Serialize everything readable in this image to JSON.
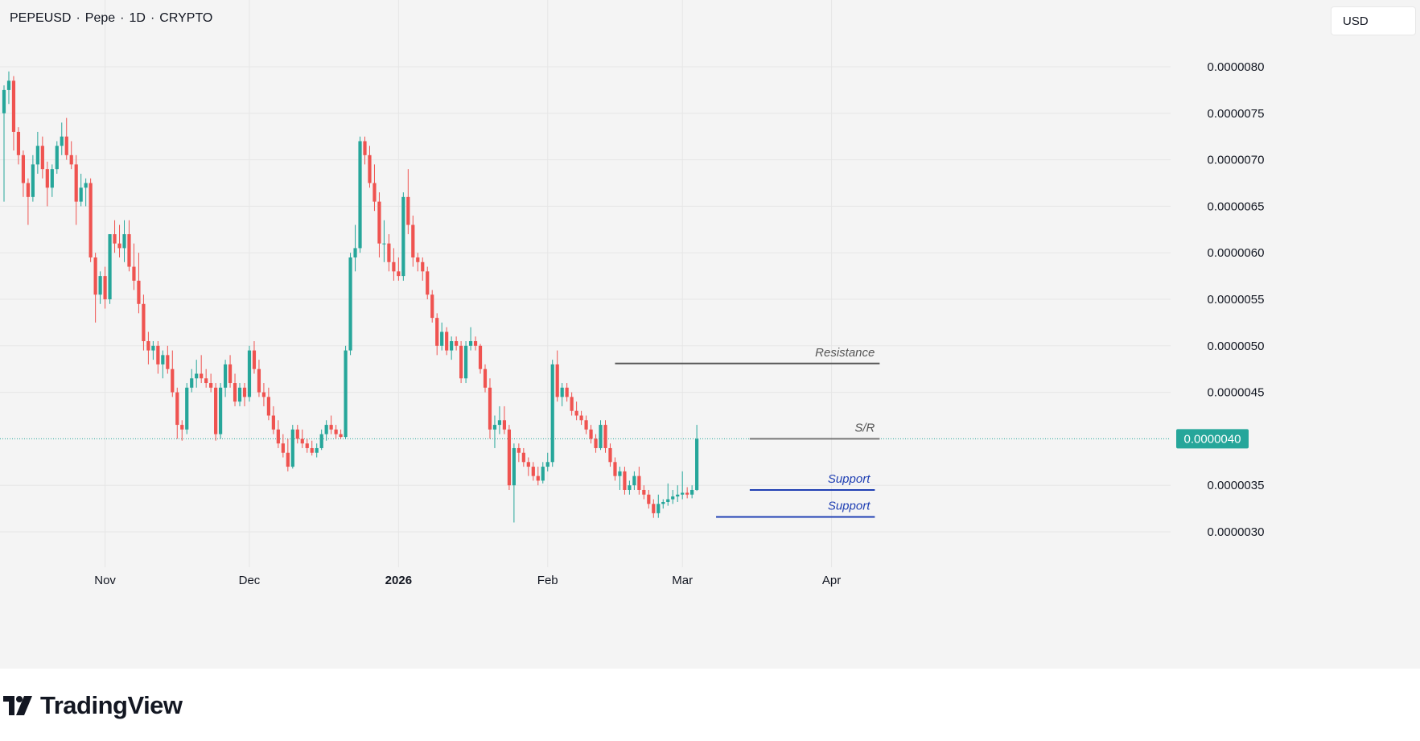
{
  "header": {
    "symbol": "PEPEUSD",
    "name": "Pepe",
    "interval": "1D",
    "exchange": "CRYPTO",
    "separator": "·"
  },
  "currency_label": "USD",
  "brand": {
    "name": "TradingView"
  },
  "colors": {
    "up": "#26a69a",
    "down": "#ef5350",
    "background": "#f4f4f4",
    "grid": "#e6e6e6",
    "text": "#131722",
    "resistance_line": "#555555",
    "sr_line": "#777777",
    "support_line": "#1f3fb3",
    "price_tag": "#26a69a"
  },
  "chart_data": {
    "type": "candlestick",
    "title": "PEPEUSD · Pepe · 1D · CRYPTO",
    "ylim": [
      2.6e-06,
      8.2e-06
    ],
    "y_ticks": [
      {
        "v": 8e-06,
        "label": "0.0000080"
      },
      {
        "v": 7.5e-06,
        "label": "0.0000075"
      },
      {
        "v": 7e-06,
        "label": "0.0000070"
      },
      {
        "v": 6.5e-06,
        "label": "0.0000065"
      },
      {
        "v": 6e-06,
        "label": "0.0000060"
      },
      {
        "v": 5.5e-06,
        "label": "0.0000055"
      },
      {
        "v": 5e-06,
        "label": "0.0000050"
      },
      {
        "v": 4.5e-06,
        "label": "0.0000045"
      },
      {
        "v": 3.5e-06,
        "label": "0.0000035"
      },
      {
        "v": 3e-06,
        "label": "0.0000030"
      }
    ],
    "x_ticks": [
      {
        "day": 21,
        "label": "Nov",
        "bold": false
      },
      {
        "day": 51,
        "label": "Dec",
        "bold": false
      },
      {
        "day": 82,
        "label": "2026",
        "bold": true
      },
      {
        "day": 113,
        "label": "Feb",
        "bold": false
      },
      {
        "day": 141,
        "label": "Mar",
        "bold": false
      },
      {
        "day": 172,
        "label": "Apr",
        "bold": false
      }
    ],
    "last_price": {
      "value": 4e-06,
      "label": "0.0000040"
    },
    "levels": [
      {
        "name": "Resistance",
        "value": 4.81e-06,
        "from_day": 127,
        "to_day": 182
      },
      {
        "name": "S/R",
        "value": 4e-06,
        "from_day": 155,
        "to_day": 182
      },
      {
        "name": "Support",
        "value": 3.45e-06,
        "from_day": 155,
        "to_day": 181
      },
      {
        "name": "Support",
        "value": 3.16e-06,
        "from_day": 148,
        "to_day": 181
      }
    ],
    "candles": [
      [
        7.5,
        7.8,
        6.55,
        7.75
      ],
      [
        7.75,
        7.95,
        7.6,
        7.85
      ],
      [
        7.85,
        7.9,
        7.1,
        7.3
      ],
      [
        7.3,
        7.35,
        6.95,
        7.05
      ],
      [
        7.05,
        7.1,
        6.6,
        6.75
      ],
      [
        6.75,
        6.8,
        6.3,
        6.6
      ],
      [
        6.6,
        7.05,
        6.55,
        6.95
      ],
      [
        6.95,
        7.3,
        6.85,
        7.15
      ],
      [
        7.15,
        7.25,
        6.8,
        6.9
      ],
      [
        6.9,
        6.98,
        6.5,
        6.7
      ],
      [
        6.7,
        6.95,
        6.6,
        6.9
      ],
      [
        6.9,
        7.2,
        6.85,
        7.15
      ],
      [
        7.15,
        7.4,
        7.05,
        7.25
      ],
      [
        7.25,
        7.45,
        7.0,
        7.05
      ],
      [
        7.05,
        7.2,
        6.9,
        6.95
      ],
      [
        6.95,
        7.05,
        6.3,
        6.55
      ],
      [
        6.55,
        6.85,
        6.5,
        6.7
      ],
      [
        6.7,
        6.8,
        6.5,
        6.75
      ],
      [
        6.75,
        6.8,
        5.9,
        5.95
      ],
      [
        5.95,
        6.0,
        5.25,
        5.55
      ],
      [
        5.55,
        5.8,
        5.45,
        5.75
      ],
      [
        5.75,
        5.85,
        5.4,
        5.5
      ],
      [
        5.5,
        6.2,
        5.45,
        6.2
      ],
      [
        6.2,
        6.35,
        6.0,
        6.1
      ],
      [
        6.1,
        6.3,
        5.95,
        6.05
      ],
      [
        6.05,
        6.35,
        5.9,
        6.2
      ],
      [
        6.2,
        6.35,
        5.8,
        5.85
      ],
      [
        5.85,
        6.1,
        5.6,
        5.7
      ],
      [
        5.7,
        6.0,
        5.35,
        5.45
      ],
      [
        5.45,
        5.55,
        4.95,
        5.05
      ],
      [
        5.05,
        5.15,
        4.8,
        4.95
      ],
      [
        4.95,
        5.05,
        4.85,
        5.0
      ],
      [
        5.0,
        5.05,
        4.7,
        4.8
      ],
      [
        4.8,
        4.95,
        4.65,
        4.9
      ],
      [
        4.9,
        5.0,
        4.7,
        4.75
      ],
      [
        4.75,
        4.95,
        4.45,
        4.5
      ],
      [
        4.5,
        4.55,
        4.0,
        4.15
      ],
      [
        4.15,
        4.2,
        3.98,
        4.1
      ],
      [
        4.1,
        4.6,
        4.05,
        4.55
      ],
      [
        4.55,
        4.75,
        4.5,
        4.65
      ],
      [
        4.65,
        4.85,
        4.55,
        4.7
      ],
      [
        4.7,
        4.9,
        4.6,
        4.65
      ],
      [
        4.65,
        4.75,
        4.55,
        4.6
      ],
      [
        4.6,
        4.7,
        4.5,
        4.55
      ],
      [
        4.55,
        4.6,
        3.98,
        4.05
      ],
      [
        4.05,
        4.6,
        4.0,
        4.55
      ],
      [
        4.55,
        4.85,
        4.45,
        4.8
      ],
      [
        4.8,
        4.9,
        4.55,
        4.6
      ],
      [
        4.6,
        4.7,
        4.35,
        4.4
      ],
      [
        4.4,
        4.6,
        4.35,
        4.55
      ],
      [
        4.55,
        4.6,
        4.35,
        4.45
      ],
      [
        4.45,
        5.0,
        4.4,
        4.95
      ],
      [
        4.95,
        5.05,
        4.7,
        4.75
      ],
      [
        4.75,
        4.85,
        4.45,
        4.5
      ],
      [
        4.5,
        4.6,
        4.35,
        4.45
      ],
      [
        4.45,
        4.55,
        4.2,
        4.25
      ],
      [
        4.25,
        4.35,
        4.05,
        4.1
      ],
      [
        4.1,
        4.2,
        3.9,
        3.95
      ],
      [
        3.95,
        4.05,
        3.8,
        3.85
      ],
      [
        3.85,
        4.0,
        3.65,
        3.7
      ],
      [
        3.7,
        4.15,
        3.68,
        4.1
      ],
      [
        4.1,
        4.15,
        3.95,
        4.0
      ],
      [
        4.0,
        4.1,
        3.9,
        3.95
      ],
      [
        3.95,
        4.0,
        3.85,
        3.9
      ],
      [
        3.9,
        3.98,
        3.82,
        3.85
      ],
      [
        3.85,
        3.95,
        3.8,
        3.9
      ],
      [
        3.9,
        4.1,
        3.88,
        4.05
      ],
      [
        4.05,
        4.2,
        3.98,
        4.15
      ],
      [
        4.15,
        4.25,
        4.05,
        4.1
      ],
      [
        4.1,
        4.15,
        4.0,
        4.05
      ],
      [
        4.05,
        4.1,
        4.0,
        4.02
      ],
      [
        4.02,
        5.0,
        4.0,
        4.95
      ],
      [
        4.95,
        6.0,
        4.9,
        5.95
      ],
      [
        5.95,
        6.3,
        5.8,
        6.05
      ],
      [
        6.05,
        7.25,
        6.0,
        7.2
      ],
      [
        7.2,
        7.25,
        6.95,
        7.05
      ],
      [
        7.05,
        7.15,
        6.7,
        6.75
      ],
      [
        6.75,
        6.95,
        6.45,
        6.55
      ],
      [
        6.55,
        6.65,
        5.95,
        6.1
      ],
      [
        6.1,
        6.35,
        5.9,
        6.1
      ],
      [
        6.1,
        6.2,
        5.8,
        5.9
      ],
      [
        5.9,
        6.05,
        5.7,
        5.8
      ],
      [
        5.8,
        5.95,
        5.7,
        5.75
      ],
      [
        5.75,
        6.65,
        5.7,
        6.6
      ],
      [
        6.6,
        6.9,
        6.2,
        6.3
      ],
      [
        6.3,
        6.4,
        5.85,
        5.95
      ],
      [
        5.95,
        6.0,
        5.8,
        5.9
      ],
      [
        5.9,
        5.95,
        5.7,
        5.8
      ],
      [
        5.8,
        5.85,
        5.5,
        5.55
      ],
      [
        5.55,
        5.6,
        5.25,
        5.3
      ],
      [
        5.3,
        5.35,
        4.9,
        5.0
      ],
      [
        5.0,
        5.25,
        4.95,
        5.15
      ],
      [
        5.15,
        5.2,
        4.9,
        4.95
      ],
      [
        4.95,
        5.1,
        4.85,
        5.05
      ],
      [
        5.05,
        5.1,
        4.95,
        5.0
      ],
      [
        5.0,
        5.05,
        4.6,
        4.65
      ],
      [
        4.65,
        5.05,
        4.6,
        5.0
      ],
      [
        5.0,
        5.2,
        4.95,
        5.05
      ],
      [
        5.05,
        5.1,
        4.95,
        5.0
      ],
      [
        5.0,
        5.02,
        4.7,
        4.75
      ],
      [
        4.75,
        4.8,
        4.5,
        4.55
      ],
      [
        4.55,
        4.65,
        4.0,
        4.1
      ],
      [
        4.1,
        4.25,
        3.9,
        4.15
      ],
      [
        4.15,
        4.35,
        4.05,
        4.2
      ],
      [
        4.2,
        4.35,
        4.05,
        4.1
      ],
      [
        4.1,
        4.15,
        3.45,
        3.5
      ],
      [
        3.5,
        3.95,
        3.1,
        3.9
      ],
      [
        3.9,
        3.95,
        3.75,
        3.85
      ],
      [
        3.85,
        3.9,
        3.7,
        3.75
      ],
      [
        3.75,
        3.8,
        3.6,
        3.7
      ],
      [
        3.7,
        3.75,
        3.55,
        3.6
      ],
      [
        3.6,
        3.7,
        3.5,
        3.55
      ],
      [
        3.55,
        3.75,
        3.52,
        3.7
      ],
      [
        3.7,
        3.85,
        3.65,
        3.75
      ],
      [
        3.75,
        4.85,
        3.7,
        4.8
      ],
      [
        4.8,
        4.95,
        4.4,
        4.45
      ],
      [
        4.45,
        4.6,
        4.35,
        4.55
      ],
      [
        4.55,
        4.6,
        4.4,
        4.45
      ],
      [
        4.45,
        4.5,
        4.25,
        4.3
      ],
      [
        4.3,
        4.4,
        4.2,
        4.25
      ],
      [
        4.25,
        4.3,
        4.15,
        4.2
      ],
      [
        4.2,
        4.25,
        4.05,
        4.1
      ],
      [
        4.1,
        4.15,
        3.95,
        4.0
      ],
      [
        4.0,
        4.05,
        3.85,
        3.9
      ],
      [
        3.9,
        4.2,
        3.88,
        4.15
      ],
      [
        4.15,
        4.2,
        3.85,
        3.9
      ],
      [
        3.9,
        3.95,
        3.7,
        3.75
      ],
      [
        3.75,
        3.8,
        3.55,
        3.6
      ],
      [
        3.6,
        3.7,
        3.45,
        3.65
      ],
      [
        3.65,
        3.7,
        3.4,
        3.45
      ],
      [
        3.45,
        3.55,
        3.4,
        3.5
      ],
      [
        3.5,
        3.65,
        3.45,
        3.6
      ],
      [
        3.6,
        3.7,
        3.4,
        3.45
      ],
      [
        3.45,
        3.5,
        3.35,
        3.4
      ],
      [
        3.4,
        3.45,
        3.25,
        3.3
      ],
      [
        3.3,
        3.35,
        3.15,
        3.2
      ],
      [
        3.2,
        3.4,
        3.15,
        3.3
      ],
      [
        3.3,
        3.35,
        3.25,
        3.32
      ],
      [
        3.32,
        3.52,
        3.28,
        3.35
      ],
      [
        3.35,
        3.45,
        3.3,
        3.38
      ],
      [
        3.38,
        3.5,
        3.32,
        3.4
      ],
      [
        3.4,
        3.65,
        3.35,
        3.42
      ],
      [
        3.42,
        3.48,
        3.36,
        3.4
      ],
      [
        3.4,
        3.5,
        3.36,
        3.45
      ],
      [
        3.45,
        4.15,
        3.44,
        4.0
      ]
    ]
  }
}
